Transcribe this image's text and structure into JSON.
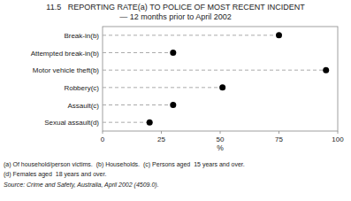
{
  "chart_data": {
    "type": "dot",
    "orientation": "horizontal",
    "title": "11.5   REPORTING RATE(a) TO POLICE OF MOST RECENT INCIDENT",
    "subtitle": "— 12 months prior to April 2002",
    "categories": [
      "Break-in(b)",
      "Attempted break-in(b)",
      "Motor vehicle theft(b)",
      "Robbery(c)",
      "Assault(c)",
      "Sexual assault(d)"
    ],
    "values": [
      75,
      30,
      95,
      51,
      30,
      20
    ],
    "color": "#000000",
    "marker": "circle",
    "line_style": "dashed",
    "x_label": "%",
    "xlim": [
      0,
      100
    ],
    "xticks": [
      0,
      25,
      50,
      75,
      100
    ],
    "grid": false,
    "annotations": [
      "(a) Of household/person victims.  (b) Households.  (c) Persons aged  15 years and over.",
      "(d) Females aged  18 years and over.",
      "Source: Crime and Safety, Australia, April 2002 (4509.0)."
    ]
  }
}
